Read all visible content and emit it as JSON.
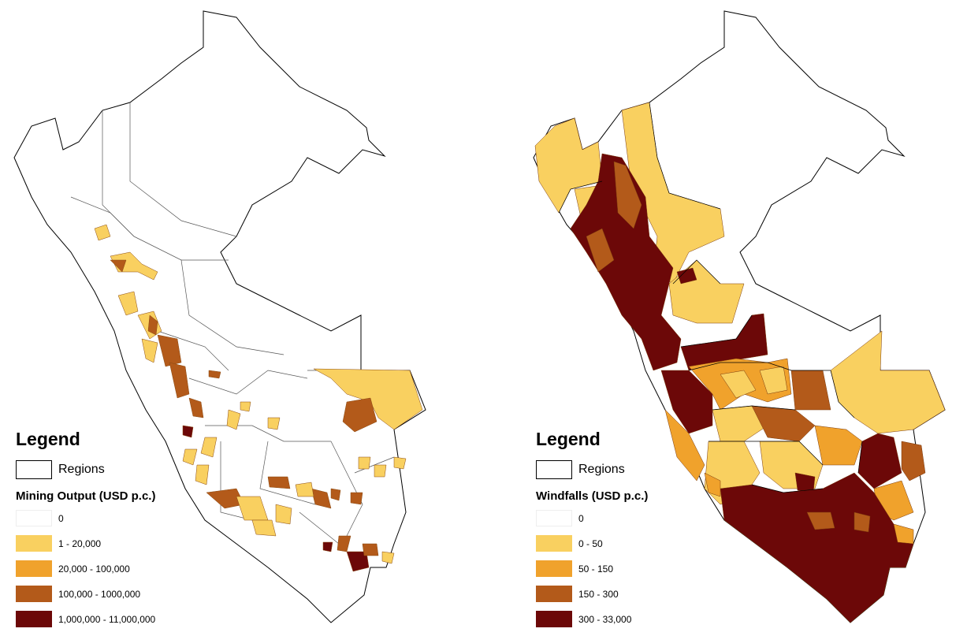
{
  "colors": {
    "class_0": "#ffffff",
    "class_1": "#f9d060",
    "class_2": "#f0a22c",
    "class_3": "#b35a1a",
    "class_4": "#6c0808",
    "outline": "#000000"
  },
  "maps": [
    {
      "legend_title": "Legend",
      "regions_label": "Regions",
      "variable_title": "Mining Output (USD p.c.)",
      "classes": [
        "0",
        "1 - 20,000",
        "20,000 - 100,000",
        "100,000 - 1000,000",
        "1,000,000 - 11,000,000"
      ]
    },
    {
      "legend_title": "Legend",
      "regions_label": "Regions",
      "variable_title": "Windfalls (USD p.c.)",
      "classes": [
        "0",
        "0 - 50",
        "50 - 150",
        "150 - 300",
        "300 - 33,000"
      ]
    }
  ]
}
